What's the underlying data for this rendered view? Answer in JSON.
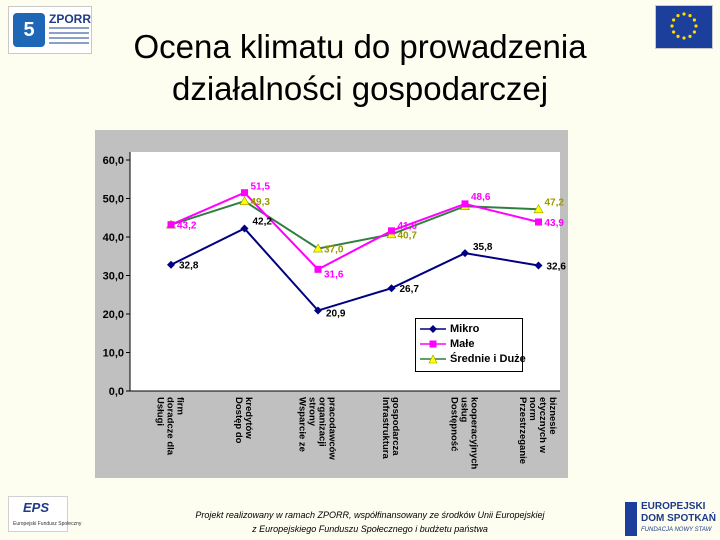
{
  "header": {
    "title_line1": "Ocena klimatu do prowadzenia",
    "title_line2": "działalności gospodarczej",
    "logo_left_text": "ZPORR",
    "logo_left_mark": "5"
  },
  "chart_data": {
    "type": "line",
    "categories": [
      "Usługi doradcze dla firm",
      "Dostęp do kredytów",
      "Wsparcie ze strony organizacji pracodawców",
      "Infrastruktura gospodarcza",
      "Dostępność usług kooperacyjnych",
      "Przestrzeganie norm etycznych w biznesie"
    ],
    "series": [
      {
        "name": "Mikro",
        "values": [
          32.8,
          42.2,
          20.9,
          26.7,
          35.8,
          32.6
        ],
        "color": "#000080",
        "marker": "diamond"
      },
      {
        "name": "Małe",
        "values": [
          43.2,
          51.5,
          31.6,
          41.6,
          48.6,
          43.9
        ],
        "color": "#ff00ff",
        "marker": "square"
      },
      {
        "name": "Średnie i Duże",
        "values": [
          43.2,
          49.3,
          37.0,
          40.7,
          48.0,
          47.2
        ],
        "color": "#2f7f3f",
        "marker": "triangle",
        "marker_color": "#ffff00"
      }
    ],
    "data_labels": [
      {
        "series": 0,
        "labels": [
          "32,8",
          "42,2",
          "20,9",
          "26,7",
          "35,8",
          "32,6"
        ],
        "color": "#000000"
      },
      {
        "series": 1,
        "labels": [
          "43,2",
          "51,5",
          "31,6",
          "41,6",
          "48,6",
          "43,9"
        ],
        "color": "#ff00ff"
      },
      {
        "series": 2,
        "labels": [
          "",
          "49,3",
          "37,0",
          "40,7",
          "",
          "47,2"
        ],
        "color": "#9a9a00"
      }
    ],
    "ylim": [
      0,
      60
    ],
    "yticks": [
      "0,0",
      "10,0",
      "20,0",
      "30,0",
      "40,0",
      "50,0",
      "60,0"
    ],
    "grid": false,
    "legend_position": "bottom-right",
    "plot_background": "#ffffff",
    "panel_background": "#c0c0c0"
  },
  "footer": {
    "note_line1": "Projekt realizowany w ramach ZPORR, współfinansowany ze środków Unii Europejskiej",
    "note_line2": "z Europejskiego Funduszu Społecznego i budżetu państwa",
    "logo_left": "EPS",
    "logo_left_tag": "Europejski Fundusz Społeczny",
    "logo_right_line1": "EUROPEJSKI",
    "logo_right_line2": "DOM SPOTKAŃ",
    "logo_right_line3": "FUNDACJA NOWY STAW"
  }
}
